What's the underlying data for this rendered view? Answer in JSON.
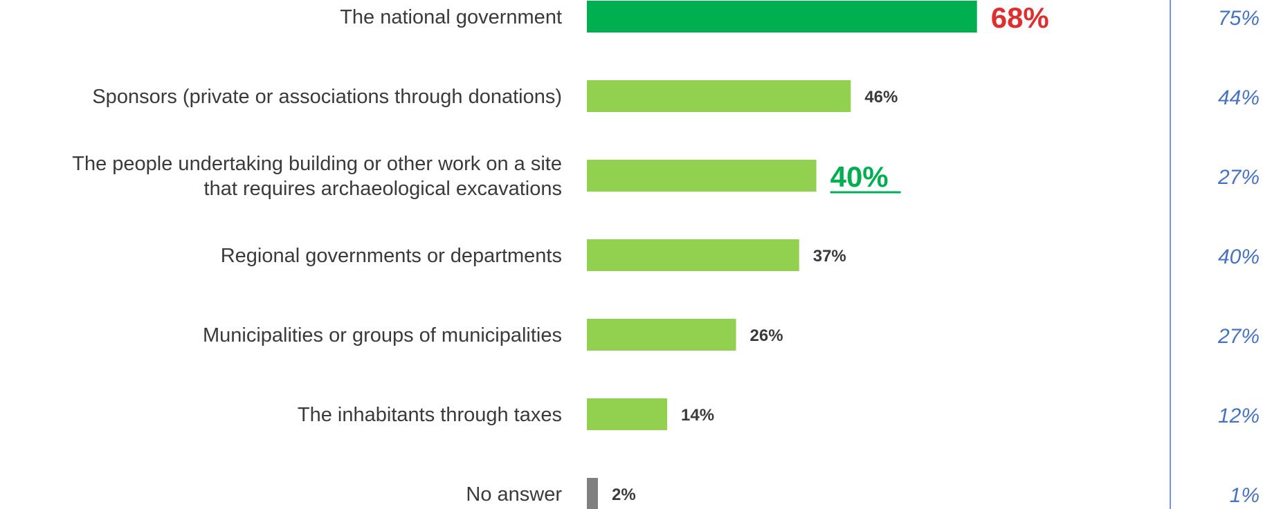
{
  "chart_data": {
    "type": "bar",
    "orientation": "horizontal",
    "categories": [
      "The national government",
      "Sponsors (private or associations through donations)",
      "The people undertaking building or other work on a site that requires archaeological excavations",
      "Regional governments or departments",
      "Municipalities or groups of municipalities",
      "The inhabitants through taxes",
      "No answer"
    ],
    "category_lines": [
      [
        "The national government"
      ],
      [
        "Sponsors (private or associations through donations)"
      ],
      [
        "The people undertaking building or other work on a site",
        "that requires archaeological excavations"
      ],
      [
        "Regional governments or departments"
      ],
      [
        "Municipalities or groups of municipalities"
      ],
      [
        "The inhabitants through taxes"
      ],
      [
        "No answer"
      ]
    ],
    "series": [
      {
        "values": [
          68,
          46,
          40,
          37,
          26,
          14,
          2
        ],
        "value_labels": [
          "68%",
          "46%",
          "40%",
          "37%",
          "26%",
          "14%",
          "2%"
        ],
        "bar_colors": [
          "#00b050",
          "#92d050",
          "#92d050",
          "#92d050",
          "#92d050",
          "#92d050",
          "#808080"
        ],
        "label_colors": [
          "#e02d2d",
          "#3a3a3a",
          "#00b050",
          "#3a3a3a",
          "#3a3a3a",
          "#3a3a3a",
          "#3a3a3a"
        ],
        "label_emphasis": [
          "large-bold",
          "normal",
          "large-bold-underline",
          "normal",
          "normal",
          "normal",
          "normal"
        ]
      },
      {
        "values": [
          75,
          44,
          27,
          40,
          27,
          12,
          1
        ],
        "value_labels": [
          "75%",
          "44%",
          "27%",
          "40%",
          "27%",
          "12%",
          "1%"
        ],
        "color": "#4472c4",
        "style": "italic-text-column"
      }
    ],
    "title": "",
    "xlabel": "",
    "ylabel": "",
    "xlim": [
      0,
      100
    ],
    "grid": false,
    "legend": "none",
    "divider_color": "#4472c4"
  }
}
